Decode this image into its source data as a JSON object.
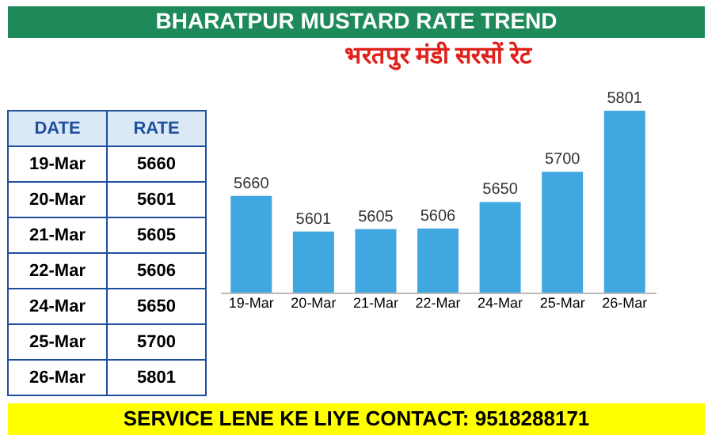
{
  "chart_data": {
    "type": "bar",
    "title": "BHARATPUR MUSTARD RATE TREND",
    "subtitle": "भरतपुर मंडी सरसों रेट",
    "categories": [
      "19-Mar",
      "20-Mar",
      "21-Mar",
      "22-Mar",
      "24-Mar",
      "25-Mar",
      "26-Mar"
    ],
    "values": [
      5660,
      5601,
      5605,
      5606,
      5650,
      5700,
      5801
    ],
    "color": "#41a7e0",
    "ylim": [
      5500,
      5801
    ],
    "data_labels": true,
    "tick_labels": "x",
    "annotations": [
      "SERVICE LENE KE LIYE CONTACT: 9518288171",
      "DATE",
      "RATE",
      "19-Mar",
      "5660",
      "20-Mar",
      "5601",
      "21-Mar",
      "5605",
      "22-Mar",
      "5606",
      "24-Mar",
      "5650",
      "25-Mar",
      "5700",
      "26-Mar",
      "5801"
    ]
  }
}
